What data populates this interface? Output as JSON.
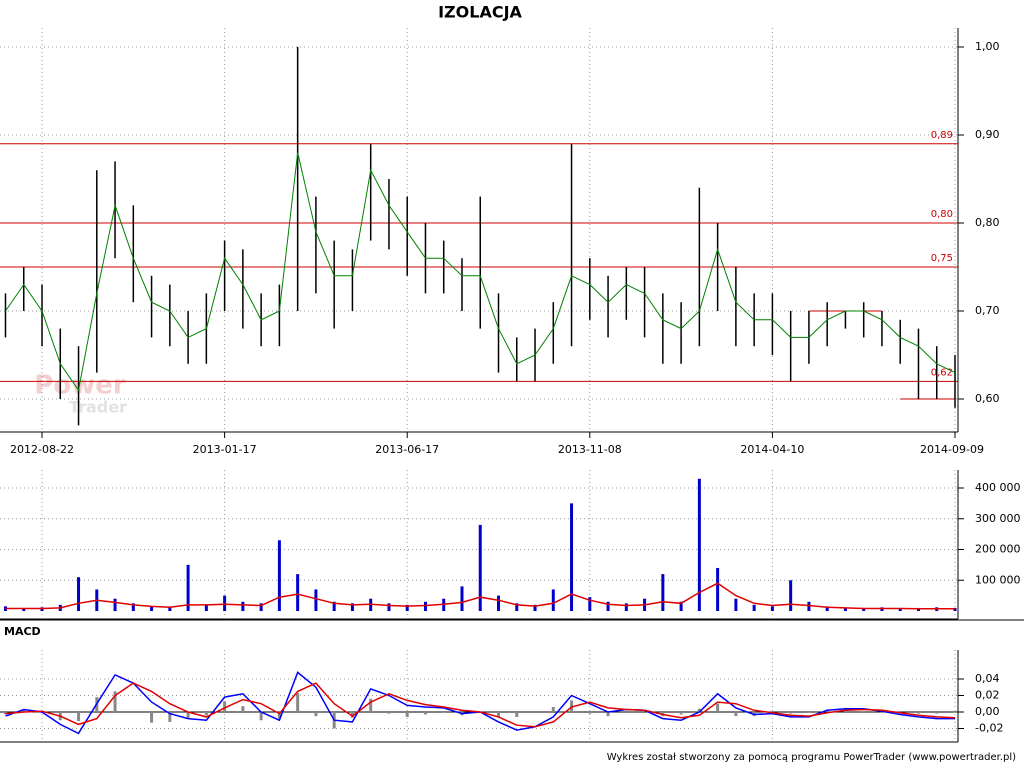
{
  "chart_data": [
    {
      "type": "range",
      "title": "IZOLACJA",
      "categories": [
        null,
        null,
        "2012-08-22",
        null,
        null,
        null,
        null,
        null,
        null,
        null,
        null,
        null,
        "2013-01-17",
        null,
        null,
        null,
        null,
        null,
        null,
        null,
        null,
        null,
        "2013-06-17",
        null,
        null,
        null,
        null,
        null,
        null,
        null,
        null,
        null,
        "2013-11-08",
        null,
        null,
        null,
        null,
        null,
        null,
        null,
        null,
        null,
        "2014-04-10",
        null,
        null,
        null,
        null,
        null,
        null,
        null,
        null,
        null,
        "2014-09-09"
      ],
      "high": [
        0.72,
        0.75,
        0.73,
        0.68,
        0.66,
        0.86,
        0.87,
        0.82,
        0.74,
        0.73,
        0.7,
        0.72,
        0.78,
        0.77,
        0.72,
        0.73,
        1.0,
        0.83,
        0.78,
        0.77,
        0.89,
        0.85,
        0.83,
        0.8,
        0.78,
        0.76,
        0.83,
        0.72,
        0.67,
        0.68,
        0.71,
        0.89,
        0.76,
        0.74,
        0.75,
        0.75,
        0.72,
        0.71,
        0.84,
        0.8,
        0.75,
        0.72,
        0.72,
        0.7,
        0.7,
        0.71,
        0.7,
        0.71,
        0.7,
        0.69,
        0.68,
        0.66,
        0.65
      ],
      "low": [
        0.67,
        0.7,
        0.66,
        0.6,
        0.57,
        0.63,
        0.76,
        0.71,
        0.67,
        0.66,
        0.64,
        0.64,
        0.7,
        0.68,
        0.66,
        0.66,
        0.7,
        0.72,
        0.68,
        0.7,
        0.78,
        0.77,
        0.74,
        0.72,
        0.72,
        0.7,
        0.68,
        0.63,
        0.62,
        0.62,
        0.64,
        0.66,
        0.69,
        0.67,
        0.69,
        0.67,
        0.64,
        0.64,
        0.66,
        0.7,
        0.66,
        0.66,
        0.65,
        0.62,
        0.64,
        0.66,
        0.68,
        0.67,
        0.66,
        0.64,
        0.6,
        0.6,
        0.59
      ],
      "ma": {
        "color": "#008000",
        "values": [
          0.7,
          0.73,
          0.7,
          0.64,
          0.61,
          0.72,
          0.82,
          0.76,
          0.71,
          0.7,
          0.67,
          0.68,
          0.76,
          0.73,
          0.69,
          0.7,
          0.88,
          0.79,
          0.74,
          0.74,
          0.86,
          0.82,
          0.79,
          0.76,
          0.76,
          0.74,
          0.74,
          0.68,
          0.64,
          0.65,
          0.68,
          0.74,
          0.73,
          0.71,
          0.73,
          0.72,
          0.69,
          0.68,
          0.7,
          0.77,
          0.71,
          0.69,
          0.69,
          0.67,
          0.67,
          0.69,
          0.7,
          0.7,
          0.69,
          0.67,
          0.66,
          0.64,
          0.63
        ]
      },
      "ylim": [
        0.56,
        1.02
      ],
      "yticks": [
        {
          "value": 0.6,
          "label": "0,60"
        },
        {
          "value": 0.7,
          "label": "0,70"
        },
        {
          "value": 0.8,
          "label": "0,80"
        },
        {
          "value": 0.9,
          "label": "0,90"
        },
        {
          "value": 1.0,
          "label": "1,00"
        }
      ],
      "grid": true,
      "bar_color": "#000000",
      "level_color": "#d00000",
      "levels": [
        {
          "value": 0.89,
          "label": "0,89"
        },
        {
          "value": 0.8,
          "label": "0,80"
        },
        {
          "value": 0.75,
          "label": "0,75"
        },
        {
          "value": 0.62,
          "label": "0,62"
        }
      ],
      "segments": [
        {
          "value": 0.7,
          "from": 44,
          "to": 48
        },
        {
          "value": 0.6,
          "from": 49,
          "to": 52
        }
      ]
    },
    {
      "type": "bar",
      "values": [
        15000,
        10000,
        12000,
        20000,
        110000,
        70000,
        40000,
        25000,
        15000,
        12000,
        150000,
        20000,
        50000,
        30000,
        25000,
        230000,
        120000,
        70000,
        30000,
        25000,
        40000,
        25000,
        20000,
        30000,
        40000,
        80000,
        280000,
        50000,
        25000,
        20000,
        70000,
        350000,
        45000,
        30000,
        25000,
        40000,
        120000,
        30000,
        430000,
        140000,
        40000,
        20000,
        15000,
        100000,
        30000,
        15000,
        10000,
        10000,
        12000,
        8000,
        10000,
        12000,
        10000
      ],
      "color": "#0000cc",
      "ma": {
        "color": "#e00000",
        "values": [
          8000,
          8000,
          8000,
          10000,
          25000,
          35000,
          28000,
          20000,
          15000,
          12000,
          20000,
          20000,
          22000,
          20000,
          18000,
          45000,
          55000,
          40000,
          25000,
          20000,
          22000,
          18000,
          16000,
          18000,
          22000,
          28000,
          45000,
          35000,
          20000,
          16000,
          25000,
          55000,
          35000,
          22000,
          18000,
          20000,
          30000,
          25000,
          60000,
          90000,
          50000,
          25000,
          18000,
          22000,
          18000,
          12000,
          10000,
          8000,
          8000,
          8000,
          7000,
          7000,
          7000
        ]
      },
      "ylim": [
        0,
        440000
      ],
      "yticks": [
        {
          "value": 100000,
          "label": "100 000"
        },
        {
          "value": 200000,
          "label": "200 000"
        },
        {
          "value": 300000,
          "label": "300 000"
        },
        {
          "value": 400000,
          "label": "400 000"
        }
      ],
      "grid": true
    },
    {
      "type": "macd",
      "title": "MACD",
      "histogram": {
        "color": "#888888",
        "values": [
          -0.003,
          0.003,
          -0.001,
          -0.01,
          -0.011,
          0.018,
          0.025,
          0,
          -0.013,
          -0.012,
          -0.008,
          -0.004,
          0.013,
          0.007,
          -0.01,
          -0.008,
          0.023,
          -0.005,
          -0.02,
          -0.007,
          0.016,
          -0.002,
          -0.006,
          -0.003,
          -0.001,
          -0.004,
          0,
          -0.006,
          -0.006,
          0,
          0.006,
          0.014,
          -0.002,
          -0.005,
          0,
          0,
          -0.005,
          -0.003,
          0.004,
          0.01,
          -0.005,
          -0.005,
          -0.001,
          -0.002,
          -0.001,
          0.003,
          0.002,
          0.001,
          -0.001,
          -0.002,
          -0.002,
          -0.002,
          -0.001
        ]
      },
      "series": [
        {
          "color": "#0000ff",
          "values": [
            -0.005,
            0.003,
            0,
            -0.015,
            -0.026,
            0.01,
            0.045,
            0.035,
            0.012,
            -0.002,
            -0.008,
            -0.01,
            0.018,
            0.022,
            0,
            -0.01,
            0.048,
            0.03,
            -0.01,
            -0.012,
            0.028,
            0.02,
            0.008,
            0.006,
            0.005,
            -0.002,
            0,
            -0.012,
            -0.022,
            -0.018,
            -0.006,
            0.02,
            0.01,
            0,
            0.003,
            0.002,
            -0.008,
            -0.01,
            0,
            0.022,
            0.005,
            -0.003,
            -0.002,
            -0.006,
            -0.006,
            0.002,
            0.004,
            0.004,
            0.001,
            -0.003,
            -0.006,
            -0.008,
            -0.008
          ]
        },
        {
          "color": "#e00000",
          "values": [
            -0.002,
            0,
            0.001,
            -0.005,
            -0.015,
            -0.008,
            0.02,
            0.035,
            0.025,
            0.01,
            0,
            -0.006,
            0.005,
            0.015,
            0.01,
            -0.002,
            0.025,
            0.035,
            0.01,
            -0.005,
            0.012,
            0.022,
            0.014,
            0.009,
            0.006,
            0.002,
            0,
            -0.006,
            -0.016,
            -0.018,
            -0.012,
            0.006,
            0.012,
            0.005,
            0.003,
            0.002,
            -0.003,
            -0.007,
            -0.004,
            0.012,
            0.01,
            0.002,
            -0.001,
            -0.004,
            -0.005,
            -0.001,
            0.002,
            0.003,
            0.002,
            -0.001,
            -0.004,
            -0.006,
            -0.007
          ]
        }
      ],
      "ylim": [
        -0.036,
        0.063
      ],
      "yticks": [
        {
          "value": -0.02,
          "label": "-0,02"
        },
        {
          "value": 0,
          "label": "0,00"
        },
        {
          "value": 0.02,
          "label": "0,02"
        },
        {
          "value": 0.04,
          "label": "0,04"
        }
      ],
      "grid": true
    }
  ],
  "watermark": {
    "line1": "Power",
    "line2": "Trader"
  },
  "footer": "Wykres został stworzony za pomocą programu PowerTrader (www.powertrader.pl)"
}
